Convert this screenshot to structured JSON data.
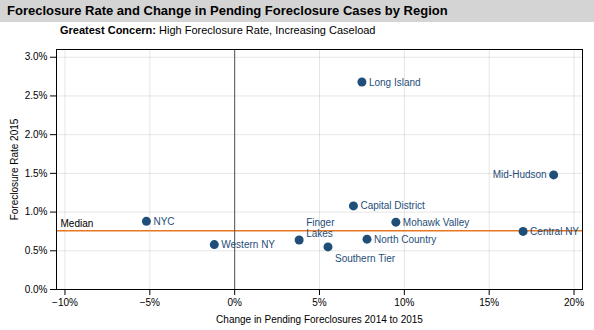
{
  "chart_data": {
    "type": "scatter",
    "title": "Foreclosure Rate and Change in Pending Foreclosure Cases by Region",
    "subtitle": "Greatest Concern: High Foreclosure Rate, Increasing Caseload",
    "xlabel": "Change in Pending Foreclosures 2014 to 2015",
    "ylabel": "Foreclosure Rate 2015",
    "labels": [
      "Long Island",
      "Mid-Hudson",
      "Capital District",
      "Mohawk Valley",
      "NYC",
      "Central NY",
      "Finger\nLakes",
      "North Country",
      "Southern Tier",
      "Western NY"
    ],
    "x": [
      0.075,
      0.188,
      0.07,
      0.095,
      -0.052,
      0.17,
      0.038,
      0.078,
      0.055,
      -0.012
    ],
    "y": [
      0.0268,
      0.0148,
      0.0108,
      0.0087,
      0.0088,
      0.0075,
      0.0064,
      0.0065,
      0.0055,
      0.0058
    ],
    "color": "#1F4E79",
    "reference_lines": [
      {
        "axis": "y",
        "value": 0.0076,
        "label": "Median",
        "color": "#E87722"
      },
      {
        "axis": "x",
        "value": 0.0,
        "color": "#555555"
      }
    ],
    "xlim": [
      -0.105,
      0.205
    ],
    "ylim": [
      0.0,
      0.031
    ],
    "xticks": [
      {
        "value": -0.1,
        "label": "−10%"
      },
      {
        "value": -0.05,
        "label": "−5%"
      },
      {
        "value": 0.0,
        "label": "0%"
      },
      {
        "value": 0.05,
        "label": "5%"
      },
      {
        "value": 0.1,
        "label": "10%"
      },
      {
        "value": 0.15,
        "label": "15%"
      },
      {
        "value": 0.2,
        "label": "20%"
      }
    ],
    "yticks": [
      {
        "value": 0.0,
        "label": "0.0%"
      },
      {
        "value": 0.005,
        "label": "0.5%"
      },
      {
        "value": 0.01,
        "label": "1.0%"
      },
      {
        "value": 0.015,
        "label": "1.5%"
      },
      {
        "value": 0.02,
        "label": "2.0%"
      },
      {
        "value": 0.025,
        "label": "2.5%"
      },
      {
        "value": 0.03,
        "label": "3.0%"
      }
    ],
    "grid": true
  }
}
